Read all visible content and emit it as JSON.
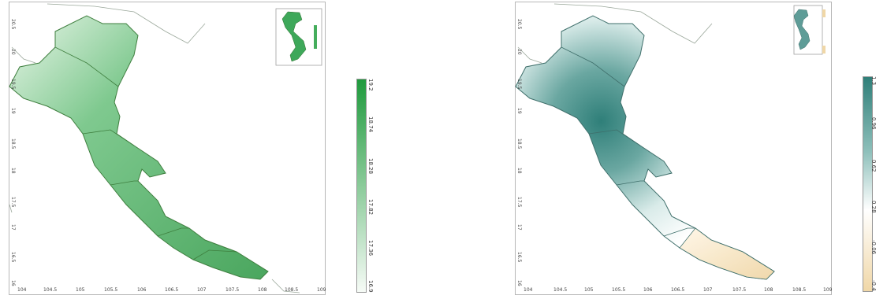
{
  "maps": [
    {
      "colorbar": {
        "min_label": "16.9",
        "max_label": "19.2",
        "labels": [
          "16.9",
          "17.36",
          "17.82",
          "18.28",
          "18.74",
          "19.2"
        ],
        "low_color": "#f6fbf6",
        "high_color": "#1f9a3d"
      },
      "x_ticks": [
        "104",
        "104.5",
        "105",
        "105.5",
        "106",
        "106.5",
        "107",
        "107.5",
        "108",
        "108.5",
        "109"
      ],
      "y_ticks": [
        "16",
        "16.5",
        "17",
        "17.5",
        "18",
        "18.5",
        "19",
        "19.5",
        "20",
        "20.5"
      ]
    },
    {
      "colorbar": {
        "min_label": "-0.4",
        "max_label": "1.3",
        "labels": [
          "-0.4",
          "-0.06",
          "0.28",
          "0.62",
          "0.96",
          "1.3"
        ],
        "low_color": "#f0d7a7",
        "mid_color": "#ffffff",
        "high_color": "#2f7f79"
      },
      "x_ticks": [
        "104",
        "104.5",
        "105",
        "105.5",
        "106",
        "106.5",
        "107",
        "107.5",
        "108",
        "108.5",
        "109"
      ],
      "y_ticks": [
        "16",
        "16.5",
        "17",
        "17.5",
        "18",
        "18.5",
        "19",
        "19.5",
        "20",
        "20.5"
      ]
    }
  ]
}
